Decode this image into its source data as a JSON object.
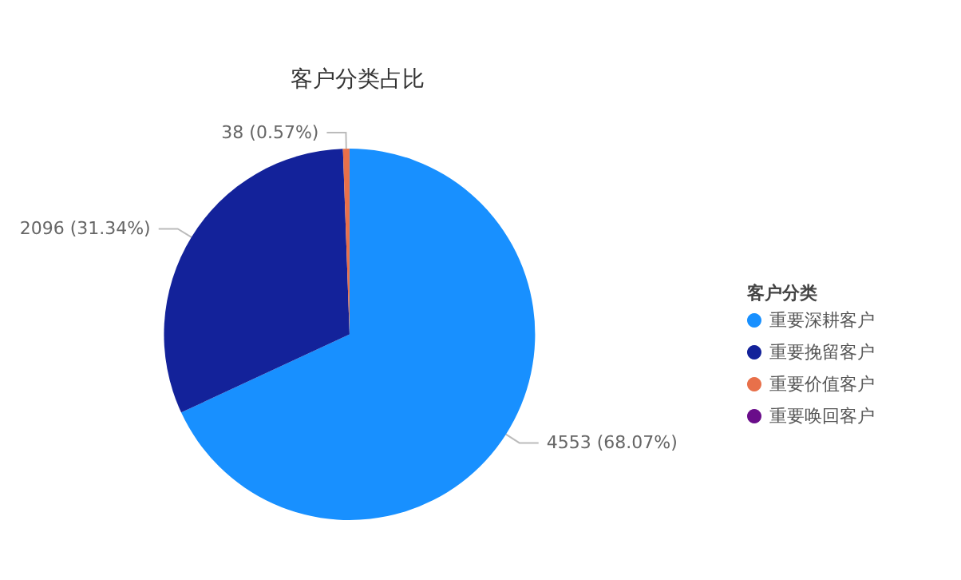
{
  "chart_data": {
    "type": "pie",
    "title": "客户分类占比",
    "legend_title": "客户分类",
    "categories": [
      "重要深耕客户",
      "重要挽留客户",
      "重要价值客户",
      "重要唤回客户"
    ],
    "values": [
      4553,
      2096,
      38,
      null
    ],
    "colors": [
      "#1890ff",
      "#13229a",
      "#e8704a",
      "#6a0d8a"
    ],
    "value_labels": [
      "4553 (68.07%)",
      "2096 (31.34%)",
      "38 (0.57%)",
      null
    ],
    "legend": "right"
  }
}
